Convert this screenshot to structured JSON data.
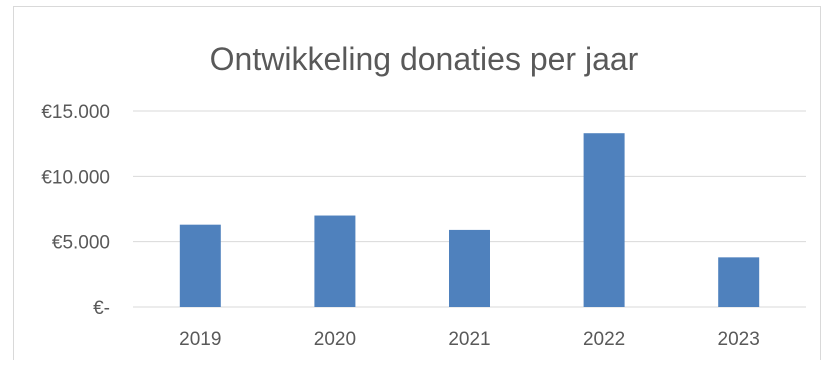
{
  "chart_data": {
    "type": "bar",
    "title": "Ontwikkeling donaties per jaar",
    "xlabel": "",
    "ylabel": "",
    "categories": [
      "2019",
      "2020",
      "2021",
      "2022",
      "2023"
    ],
    "values": [
      6300,
      7000,
      5900,
      13300,
      3800
    ],
    "ylim": [
      0,
      15000
    ],
    "yticks": [
      0,
      5000,
      10000,
      15000
    ],
    "ytick_labels": [
      "€-",
      "€5.000",
      "€10.000",
      "€15.000"
    ],
    "grid": true,
    "legend": "none",
    "bar_color": "#4f81bd",
    "grid_color": "#d9d9d9"
  }
}
